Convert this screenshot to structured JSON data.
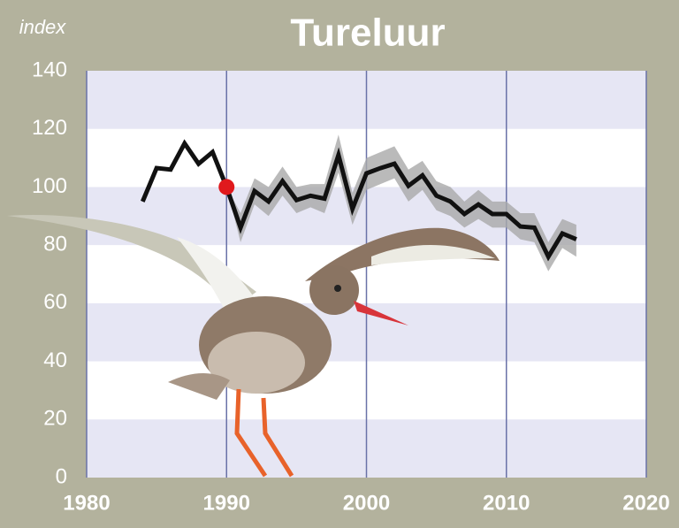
{
  "chart_data": {
    "type": "line",
    "title": "Tureluur",
    "y_label": "index",
    "x": [
      1984,
      1985,
      1986,
      1987,
      1988,
      1989,
      1990,
      1991,
      1992,
      1993,
      1994,
      1995,
      1996,
      1997,
      1998,
      1999,
      2000,
      2001,
      2002,
      2003,
      2004,
      2005,
      2006,
      2007,
      2008,
      2009,
      2010,
      2011,
      2012,
      2013,
      2014,
      2015
    ],
    "series": [
      {
        "color": "#111111",
        "values": [
          95,
          106.5,
          106,
          115,
          108,
          112,
          100,
          86,
          98.6,
          95,
          102,
          95.5,
          97,
          96,
          111,
          92.5,
          104.7,
          106.5,
          108,
          100.4,
          104,
          97,
          95,
          90.7,
          94,
          90.7,
          90.7,
          86.4,
          86,
          76,
          84,
          82
        ]
      }
    ],
    "highlight_index": 6,
    "highlight_color": "#e0191d",
    "band": {
      "color": "#a9a9a9",
      "x": [
        1990,
        1991,
        1992,
        1993,
        1994,
        1995,
        1996,
        1997,
        1998,
        1999,
        2000,
        2001,
        2002,
        2003,
        2004,
        2005,
        2006,
        2007,
        2008,
        2009,
        2010,
        2011,
        2012,
        2013,
        2014,
        2015
      ],
      "lower": [
        100,
        81,
        94,
        90,
        97,
        91,
        93,
        91,
        105,
        87,
        99,
        101,
        103,
        95,
        99,
        92,
        90,
        86,
        89,
        86,
        86,
        82,
        81,
        71,
        79,
        76
      ],
      "upper": [
        100,
        91,
        103,
        100,
        107,
        100,
        101,
        101,
        118,
        98,
        110,
        112,
        114,
        106,
        109,
        102,
        100,
        95,
        99,
        95,
        95,
        91,
        91,
        81,
        89,
        87
      ]
    },
    "xlim": [
      1980,
      2020
    ],
    "xticks": [
      1980,
      1990,
      2000,
      2010,
      2020
    ],
    "ylim": [
      0,
      140
    ],
    "yticks": [
      0,
      20,
      40,
      60,
      80,
      100,
      120,
      140
    ],
    "stripe_color": "#e6e6f4",
    "grid_color": "#6a72a8"
  }
}
